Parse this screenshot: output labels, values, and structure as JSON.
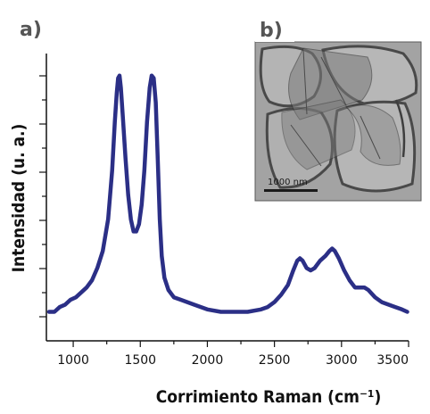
{
  "panels": {
    "a": "a)",
    "b": "b)"
  },
  "inset": {
    "scale_bar_label": "1000 nm"
  },
  "chart_data": {
    "type": "line",
    "xlabel": "Corrimiento Raman (cm⁻¹)",
    "ylabel": "Intensidad (u. a.)",
    "xlim": [
      800,
      3500
    ],
    "ylim": [
      0,
      1
    ],
    "grid": false,
    "x_ticks": [
      1000,
      1500,
      2000,
      2500,
      3000,
      3500
    ],
    "series": [
      {
        "color": "#2b2f86",
        "points": [
          [
            820,
            0.02
          ],
          [
            860,
            0.02
          ],
          [
            900,
            0.04
          ],
          [
            940,
            0.05
          ],
          [
            980,
            0.07
          ],
          [
            1020,
            0.08
          ],
          [
            1060,
            0.1
          ],
          [
            1100,
            0.12
          ],
          [
            1140,
            0.15
          ],
          [
            1180,
            0.2
          ],
          [
            1220,
            0.27
          ],
          [
            1260,
            0.4
          ],
          [
            1290,
            0.6
          ],
          [
            1310,
            0.8
          ],
          [
            1325,
            0.92
          ],
          [
            1335,
            0.98
          ],
          [
            1345,
            0.99
          ],
          [
            1355,
            0.94
          ],
          [
            1370,
            0.82
          ],
          [
            1390,
            0.65
          ],
          [
            1410,
            0.5
          ],
          [
            1430,
            0.4
          ],
          [
            1450,
            0.35
          ],
          [
            1470,
            0.35
          ],
          [
            1490,
            0.38
          ],
          [
            1510,
            0.46
          ],
          [
            1530,
            0.6
          ],
          [
            1550,
            0.8
          ],
          [
            1570,
            0.94
          ],
          [
            1585,
            0.99
          ],
          [
            1600,
            0.98
          ],
          [
            1615,
            0.88
          ],
          [
            1630,
            0.65
          ],
          [
            1645,
            0.4
          ],
          [
            1660,
            0.25
          ],
          [
            1680,
            0.16
          ],
          [
            1710,
            0.11
          ],
          [
            1750,
            0.08
          ],
          [
            1800,
            0.07
          ],
          [
            1900,
            0.05
          ],
          [
            2000,
            0.03
          ],
          [
            2100,
            0.02
          ],
          [
            2200,
            0.02
          ],
          [
            2300,
            0.02
          ],
          [
            2400,
            0.03
          ],
          [
            2450,
            0.04
          ],
          [
            2500,
            0.06
          ],
          [
            2550,
            0.09
          ],
          [
            2600,
            0.13
          ],
          [
            2640,
            0.19
          ],
          [
            2670,
            0.23
          ],
          [
            2690,
            0.24
          ],
          [
            2710,
            0.23
          ],
          [
            2740,
            0.2
          ],
          [
            2770,
            0.19
          ],
          [
            2800,
            0.2
          ],
          [
            2840,
            0.23
          ],
          [
            2880,
            0.25
          ],
          [
            2910,
            0.27
          ],
          [
            2930,
            0.28
          ],
          [
            2950,
            0.27
          ],
          [
            2980,
            0.24
          ],
          [
            3020,
            0.19
          ],
          [
            3060,
            0.15
          ],
          [
            3100,
            0.12
          ],
          [
            3140,
            0.12
          ],
          [
            3170,
            0.12
          ],
          [
            3200,
            0.11
          ],
          [
            3250,
            0.08
          ],
          [
            3300,
            0.06
          ],
          [
            3350,
            0.05
          ],
          [
            3400,
            0.04
          ],
          [
            3450,
            0.03
          ],
          [
            3490,
            0.02
          ]
        ]
      }
    ]
  }
}
